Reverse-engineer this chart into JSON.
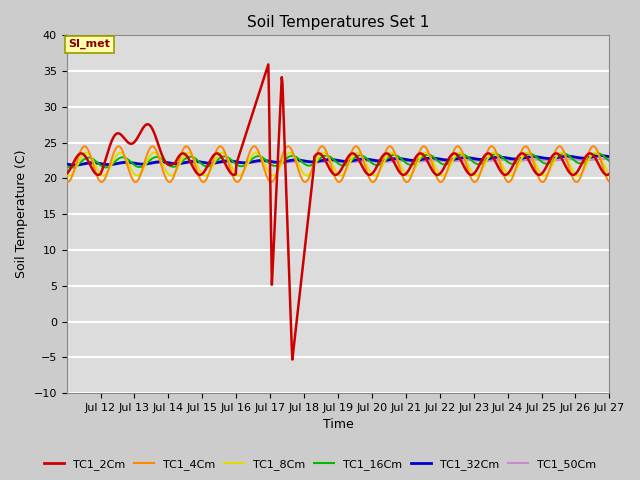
{
  "title": "Soil Temperatures Set 1",
  "xlabel": "Time",
  "ylabel": "Soil Temperature (C)",
  "ylim": [
    -10,
    40
  ],
  "yticks": [
    -10,
    -5,
    0,
    5,
    10,
    15,
    20,
    25,
    30,
    35,
    40
  ],
  "fig_bg": "#d8d8d8",
  "plot_bg": "#e0e0e0",
  "grid_color": "#f0f0f0",
  "legend_label": "SI_met",
  "series": {
    "TC1_2Cm": {
      "color": "#cc0000",
      "linewidth": 1.8
    },
    "TC1_4Cm": {
      "color": "#ff8800",
      "linewidth": 1.4
    },
    "TC1_8Cm": {
      "color": "#dddd00",
      "linewidth": 1.4
    },
    "TC1_16Cm": {
      "color": "#00bb00",
      "linewidth": 1.4
    },
    "TC1_32Cm": {
      "color": "#0000cc",
      "linewidth": 2.0
    },
    "TC1_50Cm": {
      "color": "#cc88cc",
      "linewidth": 1.4
    }
  },
  "x_tick_days": [
    12,
    13,
    14,
    15,
    16,
    17,
    18,
    19,
    20,
    21,
    22,
    23,
    24,
    25,
    26,
    27
  ],
  "x_tick_labels": [
    "Jul 12",
    "Jul 13",
    "Jul 14",
    "Jul 15",
    "Jul 16",
    "Jul 17",
    "Jul 18",
    "Jul 19",
    "Jul 20",
    "Jul 21",
    "Jul 22",
    "Jul 23",
    "Jul 24",
    "Jul 25",
    "Jul 26",
    "Jul 27"
  ]
}
